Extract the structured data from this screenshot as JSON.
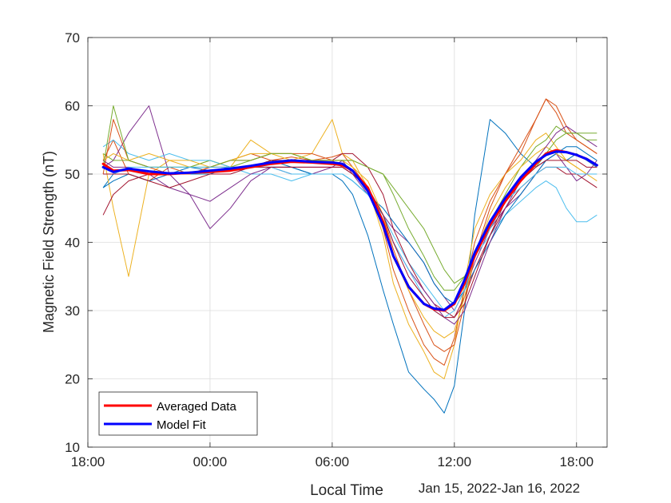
{
  "chart_data": {
    "type": "line",
    "xlabel": "Local Time",
    "x_secondary_label": "Jan 15, 2022-Jan 16, 2022",
    "ylabel": "Magnetic Field Strength (nT)",
    "x_unit": "hours since Jan 15, 2022 18:00",
    "xlim": [
      0,
      25.5
    ],
    "ylim": [
      10,
      70
    ],
    "x_tick_labels": [
      "18:00",
      "00:00",
      "06:00",
      "12:00",
      "18:00"
    ],
    "x_tick_hours": [
      0,
      6,
      12,
      18,
      24
    ],
    "y_ticks": [
      10,
      20,
      30,
      40,
      50,
      60,
      70
    ],
    "grid": true,
    "legend": {
      "position": "bottom-left",
      "entries": [
        {
          "name": "Averaged Data",
          "color": "#ff0000"
        },
        {
          "name": "Model Fit",
          "color": "#0000ff"
        }
      ]
    },
    "x": [
      0.75,
      1.25,
      2,
      3,
      4,
      5,
      6,
      7,
      8,
      9,
      10,
      11,
      12,
      12.5,
      13,
      13.75,
      14.5,
      15,
      15.75,
      16.5,
      17,
      17.5,
      18,
      18.5,
      19,
      19.75,
      20.5,
      21.25,
      22,
      22.5,
      23,
      23.5,
      24,
      24.5,
      25
    ],
    "background_series": [
      {
        "color": "#0072bd",
        "values": [
          48,
          50,
          51,
          50,
          50,
          51,
          50.5,
          51,
          51,
          52,
          51,
          50,
          50,
          49,
          47,
          41,
          33,
          28,
          21,
          18.5,
          17,
          15,
          19,
          30,
          44,
          58,
          56,
          53,
          51,
          52,
          53,
          52,
          53,
          52,
          51
        ]
      },
      {
        "color": "#d95319",
        "values": [
          52,
          55,
          50,
          49,
          51,
          50,
          51,
          52,
          53,
          52,
          52.5,
          52,
          52.5,
          53,
          51,
          48,
          42,
          36,
          30,
          25,
          23,
          22,
          26,
          33,
          40,
          46,
          50,
          53,
          58,
          61,
          59,
          56,
          55,
          54,
          53
        ]
      },
      {
        "color": "#edb120",
        "values": [
          53,
          45,
          35,
          50,
          52,
          51,
          52,
          51,
          55,
          53,
          52,
          53,
          58,
          53,
          52,
          48,
          41,
          34,
          28,
          24,
          21,
          20,
          25,
          34,
          42,
          47,
          50,
          52,
          55,
          56,
          54,
          52,
          51,
          50,
          50
        ]
      },
      {
        "color": "#7e2f8e",
        "values": [
          51,
          52,
          56,
          60,
          50,
          47,
          42,
          45,
          49,
          51,
          50,
          50,
          51,
          52,
          50,
          47,
          44,
          42,
          40,
          37,
          34,
          32,
          30,
          33,
          37,
          42,
          45,
          47,
          50,
          52,
          53,
          51,
          49,
          50,
          52
        ]
      },
      {
        "color": "#77ac30",
        "values": [
          53,
          52,
          52,
          51,
          51,
          51,
          52,
          51,
          52,
          53,
          53,
          52,
          52,
          52,
          52,
          51,
          50,
          47,
          42,
          38,
          35,
          33,
          33,
          35,
          38,
          43,
          47,
          51,
          54,
          55,
          57,
          56,
          56,
          56,
          56
        ]
      },
      {
        "color": "#4dbeee",
        "values": [
          54,
          55,
          53,
          52,
          53,
          52,
          52,
          51,
          50,
          50,
          49,
          50,
          50,
          50,
          49,
          47,
          44,
          41,
          37,
          34,
          32,
          30,
          31,
          34,
          38,
          41,
          44,
          46,
          48,
          49,
          48,
          45,
          43,
          43,
          44
        ]
      },
      {
        "color": "#a2142f",
        "values": [
          44,
          47,
          49,
          50,
          50,
          50,
          51,
          51,
          51,
          52,
          52,
          52,
          52,
          53,
          53,
          51,
          47,
          42,
          37,
          33,
          31,
          30,
          29,
          32,
          36,
          41,
          45,
          48,
          50,
          51,
          51,
          50,
          50,
          49,
          48
        ]
      },
      {
        "color": "#0072bd",
        "values": [
          48,
          49,
          50,
          49,
          50,
          50,
          50,
          51,
          51,
          51,
          51,
          50,
          50,
          50,
          49,
          47,
          45,
          43,
          40,
          37,
          34,
          32,
          31,
          33,
          36,
          40,
          44,
          47,
          50,
          52,
          53,
          54,
          54,
          53,
          52
        ]
      },
      {
        "color": "#d95319",
        "values": [
          50,
          58,
          52,
          51,
          50,
          50,
          51,
          52,
          52,
          53,
          53,
          53,
          52,
          51,
          50,
          48,
          44,
          39,
          33,
          28,
          25,
          24,
          25,
          31,
          38,
          45,
          50,
          54,
          58,
          61,
          60,
          57,
          55,
          54,
          53
        ]
      },
      {
        "color": "#edb120",
        "values": [
          52,
          53,
          52,
          53,
          52,
          52,
          51,
          52,
          53,
          53,
          53,
          52,
          52,
          52,
          51,
          49,
          44,
          38,
          33,
          29,
          27,
          26,
          27,
          32,
          38,
          44,
          48,
          51,
          53,
          54,
          53,
          52,
          51,
          50,
          49
        ]
      },
      {
        "color": "#7e2f8e",
        "values": [
          52,
          51,
          51,
          50,
          48,
          47,
          46,
          48,
          50,
          51,
          51,
          51,
          51,
          51,
          50,
          48,
          44,
          40,
          36,
          33,
          31,
          29,
          28,
          30,
          34,
          40,
          45,
          49,
          52,
          54,
          56,
          57,
          56,
          55,
          54
        ]
      },
      {
        "color": "#77ac30",
        "values": [
          51,
          60,
          52,
          51,
          51,
          51,
          51,
          52,
          52,
          53,
          53,
          52,
          52,
          52,
          52,
          51,
          50,
          48,
          45,
          42,
          39,
          36,
          34,
          35,
          38,
          42,
          46,
          49,
          51,
          53,
          55,
          56,
          56,
          55,
          55
        ]
      },
      {
        "color": "#4dbeee",
        "values": [
          50,
          50,
          51,
          51,
          51,
          51,
          51,
          51,
          51,
          51,
          50,
          50,
          50,
          50,
          49,
          47,
          44,
          40,
          36,
          32,
          30,
          29,
          30,
          33,
          38,
          42,
          46,
          48,
          50,
          51,
          51,
          51,
          50,
          50,
          50
        ]
      },
      {
        "color": "#a2142f",
        "values": [
          50,
          50,
          50,
          49,
          48,
          49,
          50,
          50,
          51,
          51,
          51,
          51,
          51,
          51,
          50,
          48,
          44,
          40,
          35,
          32,
          30,
          29,
          29,
          31,
          35,
          41,
          46,
          49,
          51,
          52,
          52,
          52,
          52,
          51,
          51
        ]
      }
    ],
    "series": [
      {
        "name": "Averaged Data",
        "color": "#ff0000",
        "values": [
          51.5,
          50.5,
          50.6,
          50,
          50,
          50.2,
          50.3,
          50.5,
          51,
          51.5,
          51.8,
          51.7,
          51.5,
          51.3,
          50.5,
          48,
          43,
          38,
          33.5,
          31,
          30.2,
          30,
          31,
          34,
          38,
          42.5,
          46,
          49,
          51.5,
          53,
          53.5,
          53.2,
          52.8,
          52.2,
          51.3
        ]
      },
      {
        "name": "Model Fit",
        "color": "#0000ff",
        "values": [
          51,
          50.3,
          50.8,
          50.4,
          50.1,
          50.2,
          50.5,
          50.8,
          51.2,
          51.7,
          52,
          51.8,
          51.7,
          51.5,
          50.5,
          47.5,
          42.5,
          38,
          33.5,
          31,
          30.3,
          30.1,
          31.2,
          34.5,
          38.5,
          43,
          46.5,
          49.5,
          51.8,
          52.8,
          53.3,
          53.2,
          52.8,
          52.2,
          51.3
        ]
      }
    ]
  }
}
